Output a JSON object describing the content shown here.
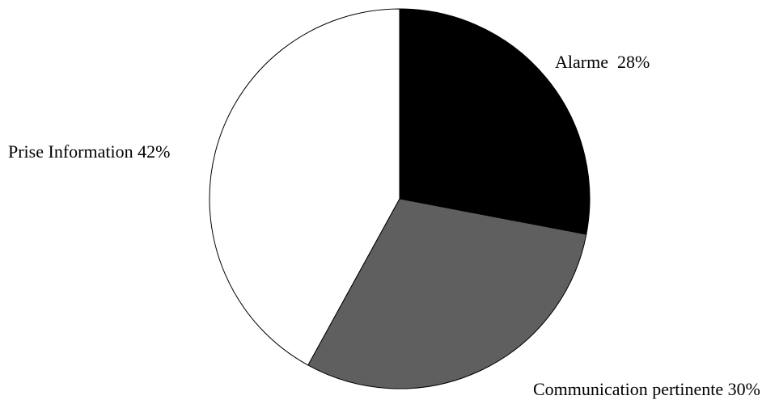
{
  "chart_data": {
    "type": "pie",
    "title": "",
    "slices": [
      {
        "label": "Alarme  28%",
        "value": 28,
        "color": "#000000"
      },
      {
        "label": "Communication pertinente 30%",
        "value": 30,
        "color": "#5f5f5f"
      },
      {
        "label": "Prise Information 42%",
        "value": 42,
        "color": "#ffffff"
      }
    ],
    "start_angle_deg": 0,
    "direction": "clockwise",
    "legend": "none",
    "outline_color": "#000000"
  }
}
